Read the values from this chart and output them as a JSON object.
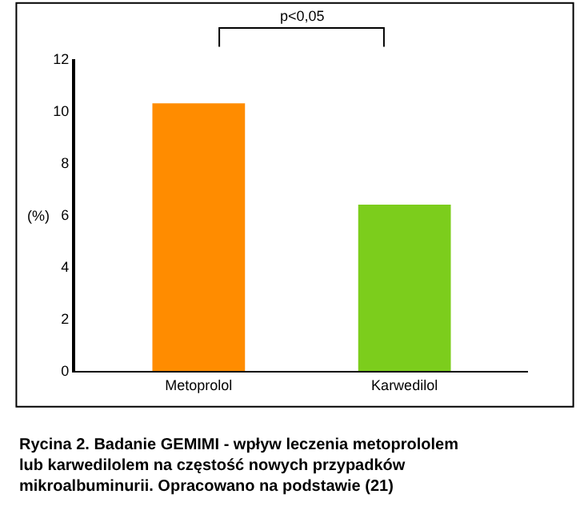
{
  "chart_data": {
    "type": "bar",
    "categories": [
      "Metoprolol",
      "Karwedilol"
    ],
    "colors": [
      "#ff8c00",
      "#7ccd1c"
    ],
    "values": [
      10.3,
      6.4
    ],
    "ylabel": "(%)",
    "ylim": [
      0,
      12
    ],
    "yticks": [
      0,
      2,
      4,
      6,
      8,
      10,
      12
    ],
    "annotations": [
      "p<0,05",
      "Rycina 2. Badanie GEMIMI - wpływ leczenia metoprololem lub karwedilolem na częstość nowych przypadków mikroalbuminurii. Opracowano na podstawie (21)"
    ]
  }
}
